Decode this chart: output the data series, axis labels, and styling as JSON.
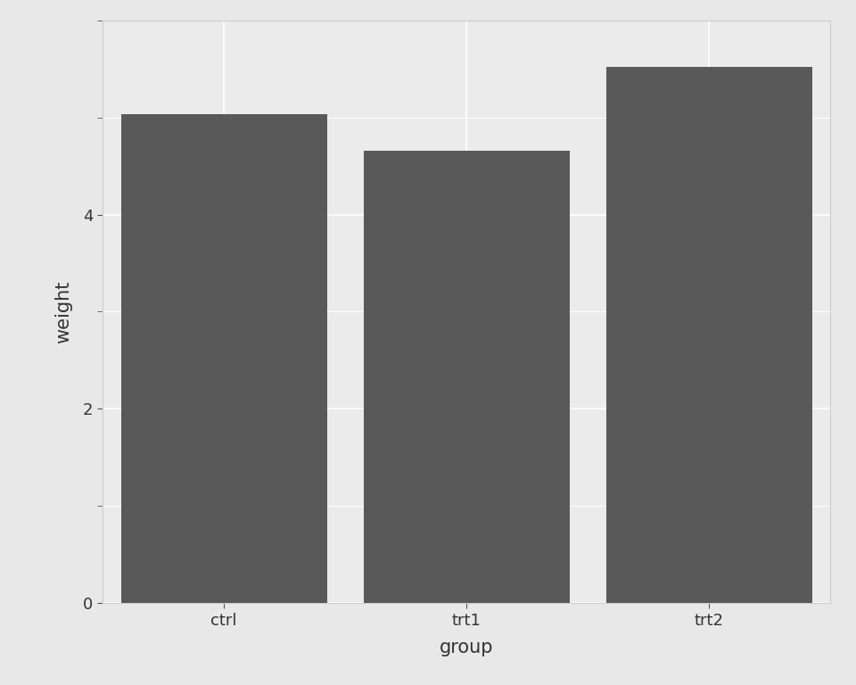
{
  "categories": [
    "ctrl",
    "trt1",
    "trt2"
  ],
  "values": [
    5.032,
    4.661,
    5.526
  ],
  "bar_color": "#595959",
  "outer_bg": "#e8e8e8",
  "panel_bg": "#ebebeb",
  "grid_color": "#ffffff",
  "xlabel": "group",
  "ylabel": "weight",
  "yticks": [
    0,
    2,
    4
  ],
  "ylim": [
    0,
    6.0
  ],
  "xlim": [
    -0.5,
    2.5
  ],
  "xlabel_fontsize": 15,
  "ylabel_fontsize": 15,
  "tick_fontsize": 13,
  "bar_width": 0.85
}
